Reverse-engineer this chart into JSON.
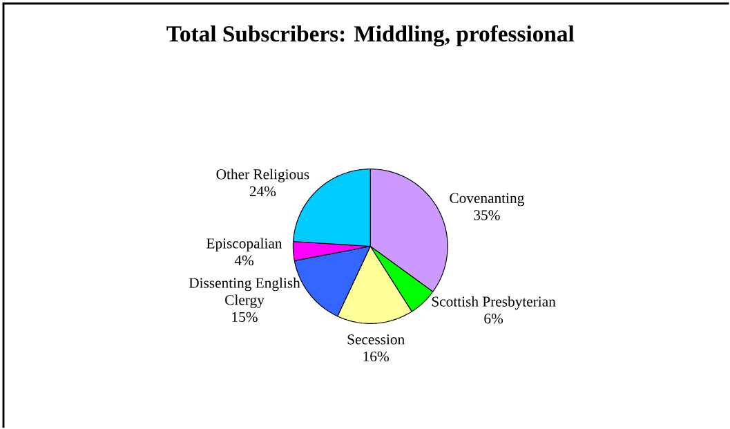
{
  "chart_data": {
    "type": "pie",
    "title": "Total Subscribers: Middling, professional",
    "categories": [
      "Covenanting",
      "Scottish Presbyterian",
      "Secession",
      "Dissenting English Clergy",
      "Episcopalian",
      "Other Religious"
    ],
    "values": [
      35,
      6,
      16,
      15,
      4,
      24
    ],
    "colors": [
      "#cc99ff",
      "#00ff00",
      "#ffff99",
      "#3366ff",
      "#ff00ff",
      "#00ccff"
    ],
    "value_labels": [
      "35%",
      "6%",
      "16%",
      "15%",
      "4%",
      "24%"
    ]
  }
}
